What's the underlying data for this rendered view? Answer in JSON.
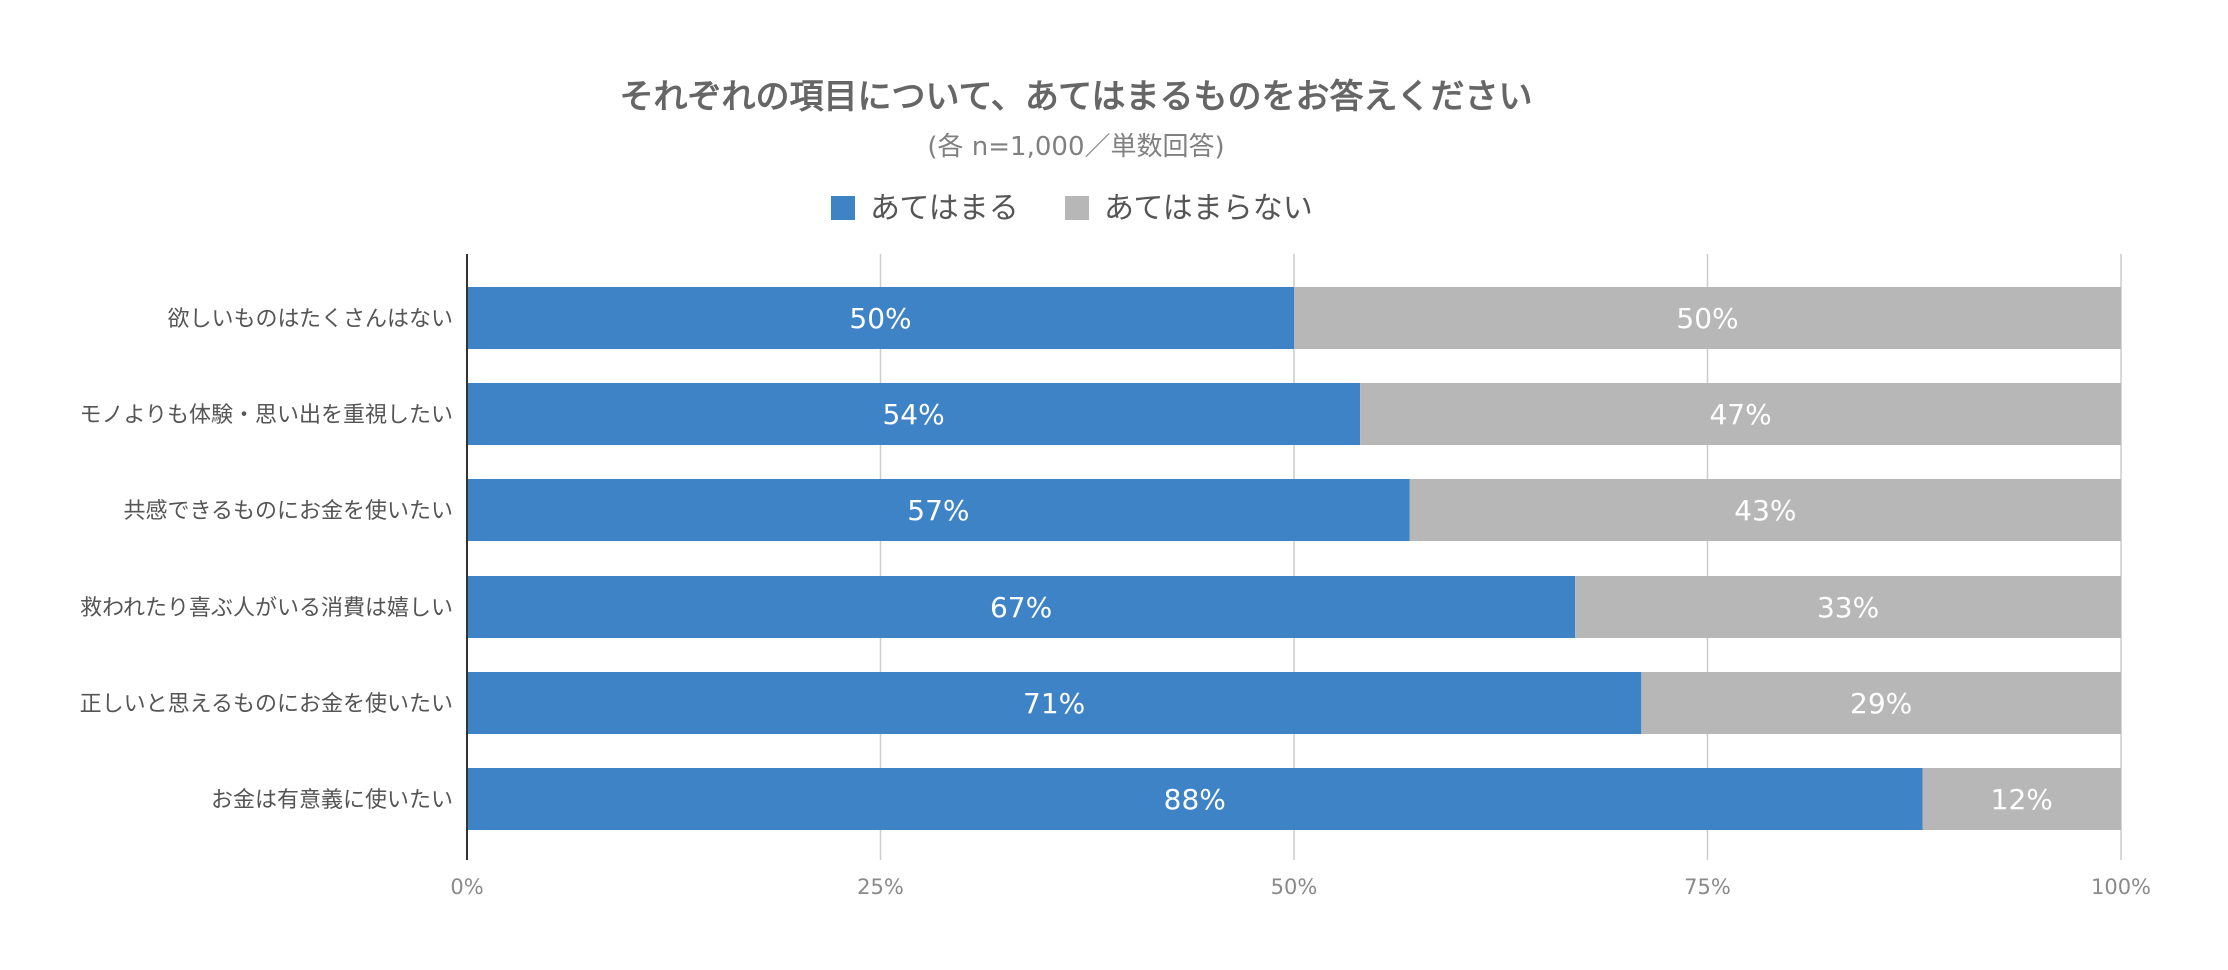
{
  "chart_data": {
    "type": "bar",
    "orientation": "horizontal",
    "stacked": true,
    "title": "それぞれの項目について、あてはまるものをお答えください",
    "subtitle": "(各 n=1,000／単数回答)",
    "categories": [
      "欲しいものはたくさんはない",
      "モノよりも体験・思い出を重視したい",
      "共感できるものにお金を使いたい",
      "救われたり喜ぶ人がいる消費は嬉しい",
      "正しいと思えるものにお金を使いたい",
      "お金は有意義に使いたい"
    ],
    "series": [
      {
        "name": "あてはまる",
        "color": "#3f83c7",
        "values": [
          50,
          54,
          57,
          67,
          71,
          88
        ],
        "labels": [
          "50%",
          "54%",
          "57%",
          "67%",
          "71%",
          "88%"
        ]
      },
      {
        "name": "あてはまらない",
        "color": "#b7b7b7",
        "values": [
          50,
          47,
          43,
          33,
          29,
          12
        ],
        "labels": [
          "50%",
          "47%",
          "43%",
          "33%",
          "29%",
          "12%"
        ]
      }
    ],
    "xlim": [
      0,
      100
    ],
    "xticks": [
      0,
      25,
      50,
      75,
      100
    ],
    "xtick_labels": [
      "0%",
      "25%",
      "50%",
      "75%",
      "100%"
    ],
    "grid": true,
    "legend_position": "top"
  }
}
